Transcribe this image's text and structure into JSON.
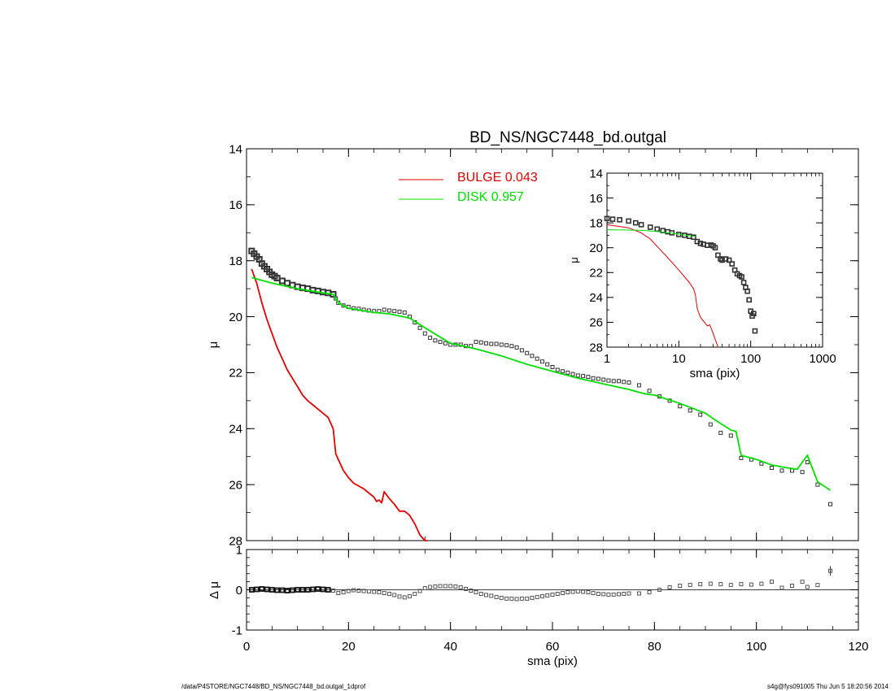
{
  "page": {
    "footer_left": "/data/P4STORE/NGC7448/BD_NS/NGC7448_bd.outgal_1dprof",
    "footer_right": "s4g@fys091005  Thu Jun  5 18:20:56 2014"
  },
  "colors": {
    "bulge": "#e00000",
    "disk": "#00e000",
    "data": "#000000",
    "residual_marker": "#555555"
  },
  "chart_data": [
    {
      "id": "main",
      "type": "line",
      "title": "BD_NS/NGC7448_bd.outgal",
      "xlabel": "",
      "ylabel": "μ",
      "xlim": [
        0,
        120
      ],
      "ylim": [
        28,
        14
      ],
      "xticks": [
        0,
        20,
        40,
        60,
        80,
        100,
        120
      ],
      "yticks": [
        14,
        16,
        18,
        20,
        22,
        24,
        26,
        28
      ],
      "legend": [
        {
          "label": "BULGE",
          "value": "0.043",
          "color": "#e00000"
        },
        {
          "label": "DISK",
          "value": "0.957",
          "color": "#00e000"
        }
      ],
      "legend_position": "top-center",
      "series": [
        {
          "name": "BULGE",
          "color": "#e00000",
          "x": [
            1,
            2,
            3,
            4,
            5,
            6,
            7,
            8,
            9,
            10,
            11,
            12,
            13,
            14,
            15,
            16,
            17,
            17.5,
            18,
            19,
            20,
            21,
            22,
            23,
            24,
            25,
            25.5,
            26,
            26.5,
            27,
            28,
            29,
            30,
            31,
            32,
            33,
            34,
            35,
            35.5
          ],
          "y": [
            18.3,
            18.8,
            19.5,
            20.1,
            20.6,
            21.1,
            21.5,
            21.9,
            22.2,
            22.5,
            22.8,
            23.0,
            23.15,
            23.3,
            23.45,
            23.6,
            24.0,
            24.9,
            25.1,
            25.5,
            25.75,
            25.95,
            26.05,
            26.15,
            26.3,
            26.45,
            26.6,
            26.55,
            26.65,
            26.25,
            26.5,
            26.7,
            26.95,
            26.95,
            27.1,
            27.4,
            27.8,
            28.0,
            28.0
          ]
        },
        {
          "name": "DISK",
          "color": "#00e000",
          "x": [
            1,
            5,
            10,
            15,
            17,
            18,
            20,
            25,
            28,
            32,
            35,
            40,
            45,
            50,
            55,
            60,
            65,
            70,
            75,
            78,
            80,
            85,
            90,
            92,
            95,
            96,
            97,
            100,
            103,
            106,
            108,
            110,
            112,
            114.5
          ],
          "y": [
            18.6,
            18.8,
            19.0,
            19.15,
            19.2,
            19.5,
            19.7,
            19.85,
            19.9,
            20.05,
            20.4,
            20.95,
            21.15,
            21.4,
            21.7,
            21.95,
            22.2,
            22.4,
            22.6,
            22.75,
            22.8,
            23.1,
            23.45,
            23.7,
            24.05,
            24.1,
            24.95,
            25.1,
            25.3,
            25.4,
            25.45,
            24.95,
            25.9,
            26.2
          ]
        }
      ],
      "observed": {
        "name": "data",
        "dense_x": [
          1,
          1.5,
          2,
          2.5,
          3,
          3.5,
          4,
          4.5,
          5,
          5.5,
          6,
          7,
          8,
          9,
          10,
          11,
          12,
          13,
          14,
          15,
          16,
          17
        ],
        "dense_y": [
          17.65,
          17.75,
          17.85,
          17.95,
          18.1,
          18.2,
          18.3,
          18.4,
          18.5,
          18.55,
          18.62,
          18.72,
          18.8,
          18.87,
          18.93,
          18.97,
          19.0,
          19.05,
          19.08,
          19.12,
          19.15,
          19.2
        ],
        "x": [
          17.5,
          18,
          19,
          20,
          21,
          22,
          23,
          24,
          25,
          26,
          27,
          28,
          29,
          30,
          31,
          32,
          33,
          34,
          35,
          36,
          37,
          38,
          39,
          40,
          41,
          42,
          43,
          44,
          45,
          46,
          47,
          48,
          49,
          50,
          51,
          52,
          53,
          54,
          55,
          56,
          57,
          58,
          59,
          60,
          61,
          62,
          63,
          64,
          65,
          66,
          67,
          68,
          69,
          70,
          71,
          72,
          73,
          74,
          75,
          77,
          79,
          81,
          83,
          85,
          87,
          89,
          91,
          93,
          95,
          97,
          99,
          101,
          103,
          105,
          107,
          109,
          110,
          112,
          114.5
        ],
        "y": [
          19.35,
          19.5,
          19.6,
          19.65,
          19.7,
          19.72,
          19.75,
          19.78,
          19.8,
          19.8,
          19.75,
          19.78,
          19.8,
          19.82,
          19.85,
          20.0,
          20.2,
          20.4,
          20.6,
          20.75,
          20.85,
          20.9,
          20.95,
          21.0,
          21.0,
          21.0,
          21.05,
          21.05,
          20.9,
          20.92,
          20.95,
          20.97,
          20.97,
          21.0,
          21.02,
          21.05,
          21.1,
          21.2,
          21.3,
          21.4,
          21.5,
          21.6,
          21.7,
          21.8,
          21.9,
          21.95,
          22.0,
          22.05,
          22.1,
          22.12,
          22.15,
          22.2,
          22.22,
          22.25,
          22.28,
          22.3,
          22.3,
          22.33,
          22.35,
          22.45,
          22.65,
          22.85,
          23.0,
          23.2,
          23.35,
          23.5,
          23.85,
          24.15,
          24.25,
          25.05,
          25.1,
          25.25,
          25.4,
          25.5,
          25.5,
          25.55,
          25.2,
          26.0,
          26.7
        ]
      }
    },
    {
      "id": "inset",
      "type": "line",
      "xscale": "log",
      "xlabel": "sma (pix)",
      "ylabel": "μ",
      "xlim": [
        1,
        1000
      ],
      "ylim": [
        28,
        14
      ],
      "xticks": [
        1,
        10,
        100,
        1000
      ],
      "xtick_labels": [
        "1",
        "10",
        "100",
        "1000"
      ],
      "yticks": [
        14,
        16,
        18,
        20,
        22,
        24,
        26,
        28
      ],
      "series": [
        {
          "name": "BULGE",
          "color": "#e00000",
          "x": [
            1,
            2,
            3,
            4,
            5,
            7,
            10,
            14,
            16,
            17,
            18,
            20,
            25,
            27,
            30,
            35
          ],
          "y": [
            18.15,
            18.4,
            18.8,
            19.3,
            19.9,
            20.8,
            21.8,
            22.8,
            23.3,
            23.8,
            24.9,
            25.6,
            26.3,
            26.2,
            26.9,
            28.0
          ]
        },
        {
          "name": "DISK",
          "color": "#00e000",
          "x": [
            1,
            3,
            5,
            10,
            17
          ],
          "y": [
            18.55,
            18.6,
            18.7,
            18.9,
            19.1
          ]
        }
      ],
      "observed": {
        "name": "data",
        "x": [
          1,
          1.2,
          1.5,
          2,
          2.5,
          3,
          4,
          5,
          6,
          7,
          8,
          10,
          12,
          14,
          16,
          18,
          20,
          22,
          25,
          28,
          30,
          32,
          35,
          38,
          40,
          45,
          50,
          55,
          60,
          65,
          70,
          75,
          80,
          85,
          90,
          95,
          100,
          105,
          110,
          114.5
        ],
        "y": [
          17.65,
          17.7,
          17.75,
          17.85,
          18.0,
          18.15,
          18.35,
          18.5,
          18.62,
          18.72,
          18.8,
          18.93,
          19.0,
          19.08,
          19.15,
          19.5,
          19.65,
          19.72,
          19.8,
          19.78,
          19.85,
          20.0,
          20.6,
          20.9,
          21.0,
          20.9,
          21.0,
          21.3,
          21.8,
          22.1,
          22.25,
          22.35,
          22.8,
          23.2,
          23.5,
          24.2,
          25.1,
          25.5,
          25.3,
          26.7
        ]
      }
    },
    {
      "id": "residual",
      "type": "scatter",
      "xlabel": "sma (pix)",
      "ylabel": "Δ μ",
      "xlim": [
        0,
        120
      ],
      "ylim": [
        -1,
        1
      ],
      "xticks": [
        0,
        20,
        40,
        60,
        80,
        100,
        120
      ],
      "yticks": [
        -1,
        0,
        1
      ],
      "baseline": 0,
      "series": [
        {
          "name": "residual",
          "x": [
            1,
            2,
            3,
            4,
            5,
            6,
            7,
            8,
            9,
            10,
            11,
            12,
            13,
            14,
            15,
            16,
            17,
            18,
            19,
            20,
            21,
            22,
            23,
            24,
            25,
            26,
            27,
            28,
            29,
            30,
            31,
            32,
            33,
            34,
            35,
            36,
            37,
            38,
            39,
            40,
            41,
            42,
            43,
            44,
            45,
            46,
            47,
            48,
            49,
            50,
            51,
            52,
            53,
            54,
            55,
            56,
            57,
            58,
            59,
            60,
            61,
            62,
            63,
            64,
            65,
            66,
            67,
            68,
            69,
            70,
            71,
            72,
            73,
            74,
            75,
            77,
            79,
            81,
            83,
            85,
            87,
            89,
            91,
            93,
            95,
            97,
            99,
            101,
            103,
            105,
            107,
            109,
            110,
            112,
            114.5
          ],
          "y": [
            0.0,
            0.01,
            0.02,
            0.01,
            0.0,
            -0.01,
            -0.01,
            -0.02,
            -0.01,
            0.0,
            0.0,
            0.0,
            0.01,
            0.02,
            0.01,
            0.0,
            -0.02,
            -0.08,
            -0.06,
            -0.03,
            -0.01,
            -0.02,
            -0.03,
            -0.04,
            -0.05,
            -0.06,
            -0.08,
            -0.1,
            -0.13,
            -0.17,
            -0.19,
            -0.16,
            -0.1,
            -0.03,
            0.04,
            0.07,
            0.08,
            0.09,
            0.09,
            0.09,
            0.08,
            0.06,
            0.02,
            -0.02,
            -0.06,
            -0.1,
            -0.13,
            -0.15,
            -0.18,
            -0.2,
            -0.22,
            -0.22,
            -0.23,
            -0.22,
            -0.22,
            -0.2,
            -0.18,
            -0.16,
            -0.14,
            -0.12,
            -0.1,
            -0.08,
            -0.06,
            -0.05,
            -0.04,
            -0.05,
            -0.06,
            -0.08,
            -0.1,
            -0.11,
            -0.12,
            -0.12,
            -0.11,
            -0.1,
            -0.09,
            -0.09,
            -0.06,
            0.0,
            0.06,
            0.1,
            0.12,
            0.14,
            0.15,
            0.14,
            0.12,
            0.14,
            0.13,
            0.15,
            0.2,
            0.05,
            0.1,
            0.2,
            0.07,
            0.12,
            0.47
          ],
          "error_x": [
            114.5
          ],
          "error_y": [
            0.12
          ]
        }
      ]
    }
  ]
}
